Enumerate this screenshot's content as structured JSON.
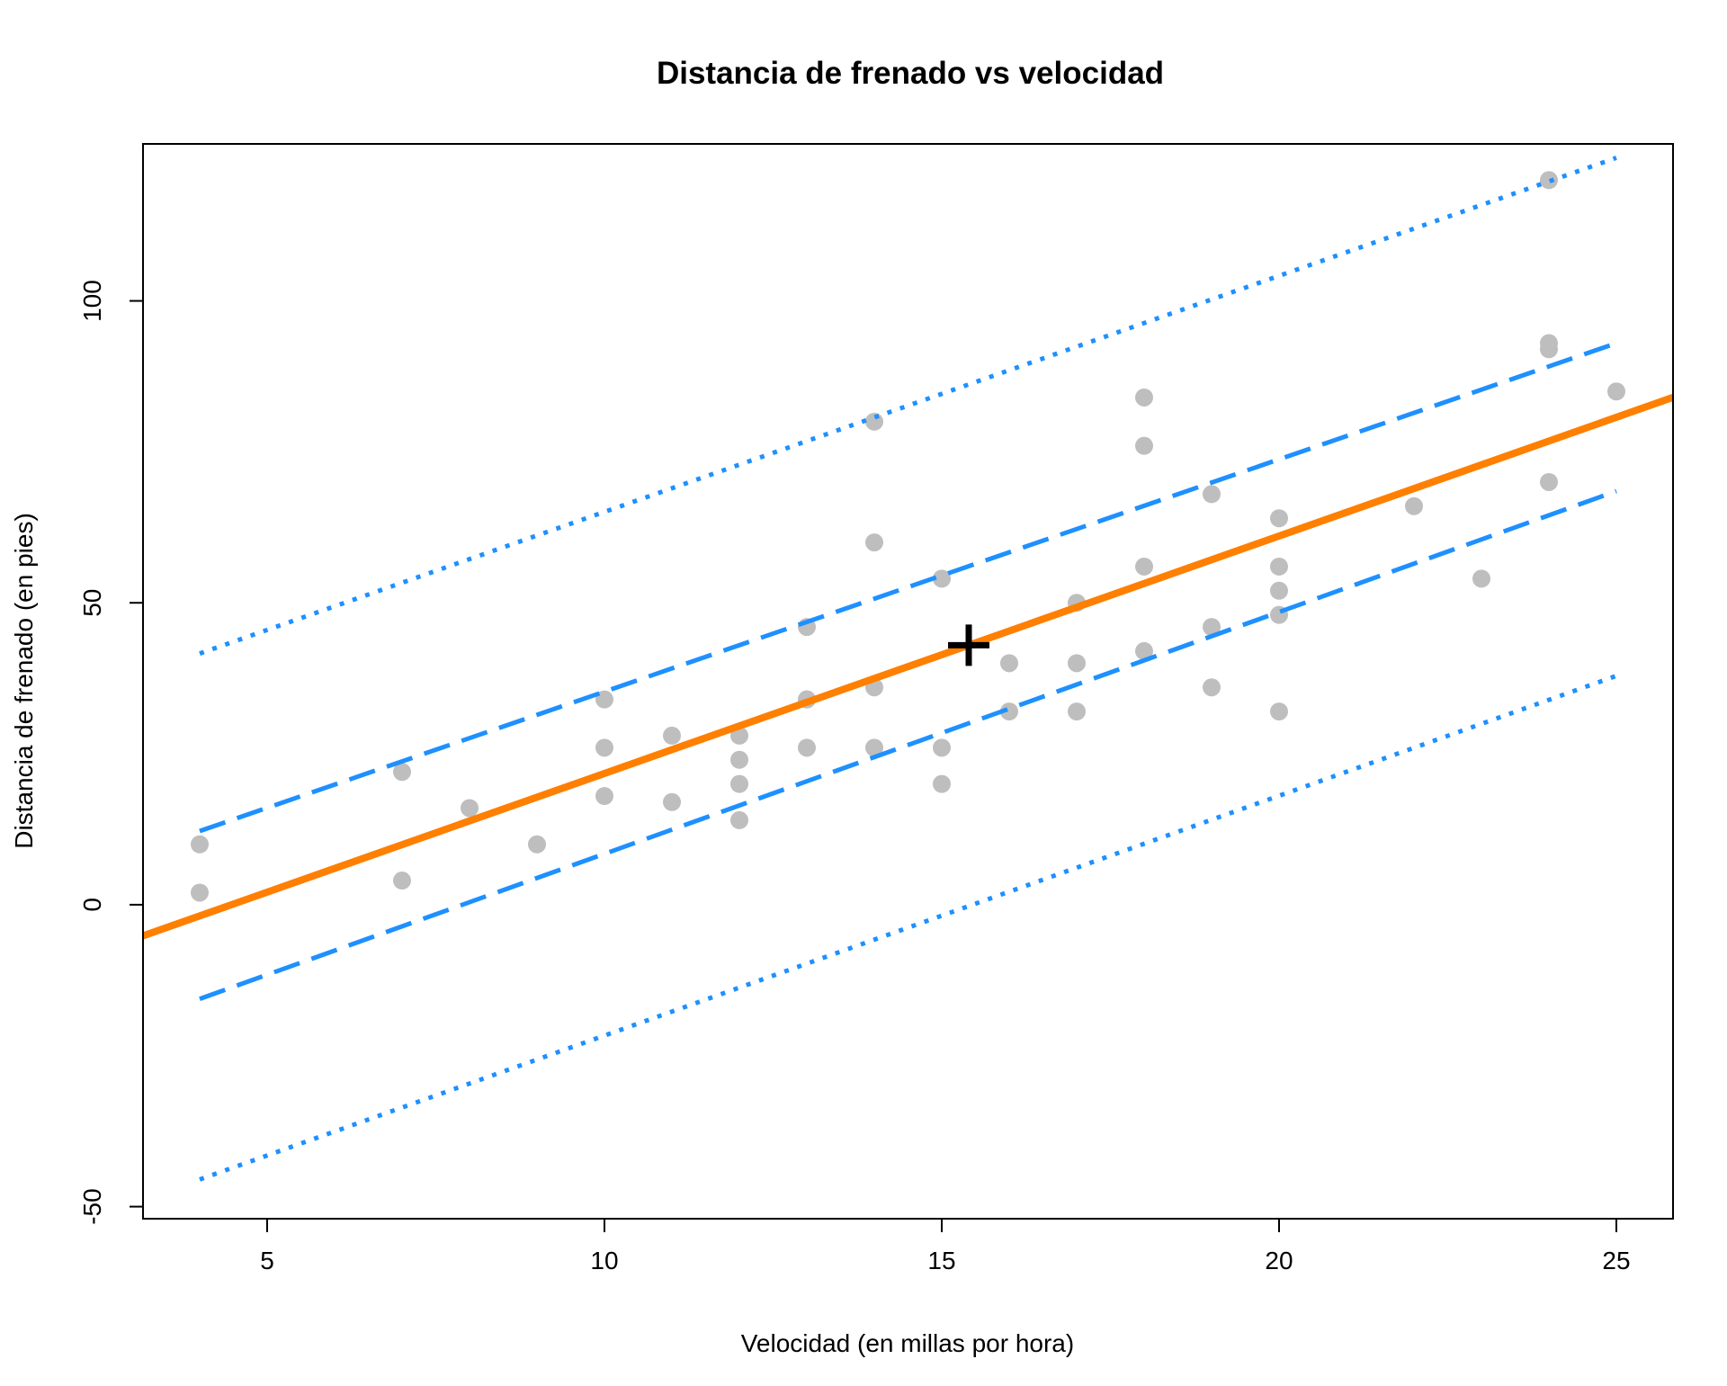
{
  "colors": {
    "points": "#BEBEBE",
    "fit_line": "#FF7F00",
    "intervals": "#1E90FF",
    "center_marker": "#000000",
    "axes": "#000000"
  },
  "chart_data": {
    "type": "scatter",
    "title": "Distancia de frenado vs velocidad",
    "xlabel": "Velocidad (en millas por hora)",
    "ylabel": "Distancia de frenado (en pies)",
    "xlim": [
      3.16,
      25.84
    ],
    "ylim": [
      -52,
      126
    ],
    "x_ticks": [
      5,
      10,
      15,
      20,
      25
    ],
    "y_ticks": [
      -50,
      0,
      50,
      100
    ],
    "grid": false,
    "legend": "none",
    "series": [
      {
        "type": "scatter",
        "marker": "circle",
        "points": [
          [
            4,
            2
          ],
          [
            4,
            10
          ],
          [
            7,
            4
          ],
          [
            7,
            22
          ],
          [
            8,
            16
          ],
          [
            9,
            10
          ],
          [
            10,
            18
          ],
          [
            10,
            26
          ],
          [
            10,
            34
          ],
          [
            11,
            17
          ],
          [
            11,
            28
          ],
          [
            12,
            14
          ],
          [
            12,
            20
          ],
          [
            12,
            24
          ],
          [
            12,
            28
          ],
          [
            13,
            26
          ],
          [
            13,
            34
          ],
          [
            13,
            34
          ],
          [
            13,
            46
          ],
          [
            14,
            26
          ],
          [
            14,
            36
          ],
          [
            14,
            60
          ],
          [
            14,
            80
          ],
          [
            15,
            20
          ],
          [
            15,
            26
          ],
          [
            15,
            54
          ],
          [
            16,
            32
          ],
          [
            16,
            40
          ],
          [
            17,
            32
          ],
          [
            17,
            40
          ],
          [
            17,
            50
          ],
          [
            18,
            42
          ],
          [
            18,
            56
          ],
          [
            18,
            76
          ],
          [
            18,
            84
          ],
          [
            19,
            36
          ],
          [
            19,
            46
          ],
          [
            19,
            68
          ],
          [
            20,
            32
          ],
          [
            20,
            48
          ],
          [
            20,
            52
          ],
          [
            20,
            56
          ],
          [
            20,
            64
          ],
          [
            22,
            66
          ],
          [
            23,
            54
          ],
          [
            24,
            70
          ],
          [
            24,
            92
          ],
          [
            24,
            93
          ],
          [
            24,
            120
          ],
          [
            25,
            85
          ]
        ]
      },
      {
        "type": "line",
        "style": "solid",
        "intercept": -17.58,
        "slope": 3.932
      },
      {
        "type": "line",
        "style": "dashed",
        "points": [
          [
            4,
            12.2
          ],
          [
            25,
            93
          ]
        ]
      },
      {
        "type": "line",
        "style": "dashed",
        "points": [
          [
            4,
            -15.6
          ],
          [
            25,
            68.5
          ]
        ]
      },
      {
        "type": "line",
        "style": "dotted",
        "points": [
          [
            4,
            41.6
          ],
          [
            25,
            123.7
          ]
        ]
      },
      {
        "type": "line",
        "style": "dotted",
        "points": [
          [
            4,
            -45.5
          ],
          [
            25,
            37.9
          ]
        ]
      }
    ],
    "annotations": [
      {
        "type": "marker",
        "marker": "plus",
        "x": 15.4,
        "y": 42.98
      }
    ]
  }
}
